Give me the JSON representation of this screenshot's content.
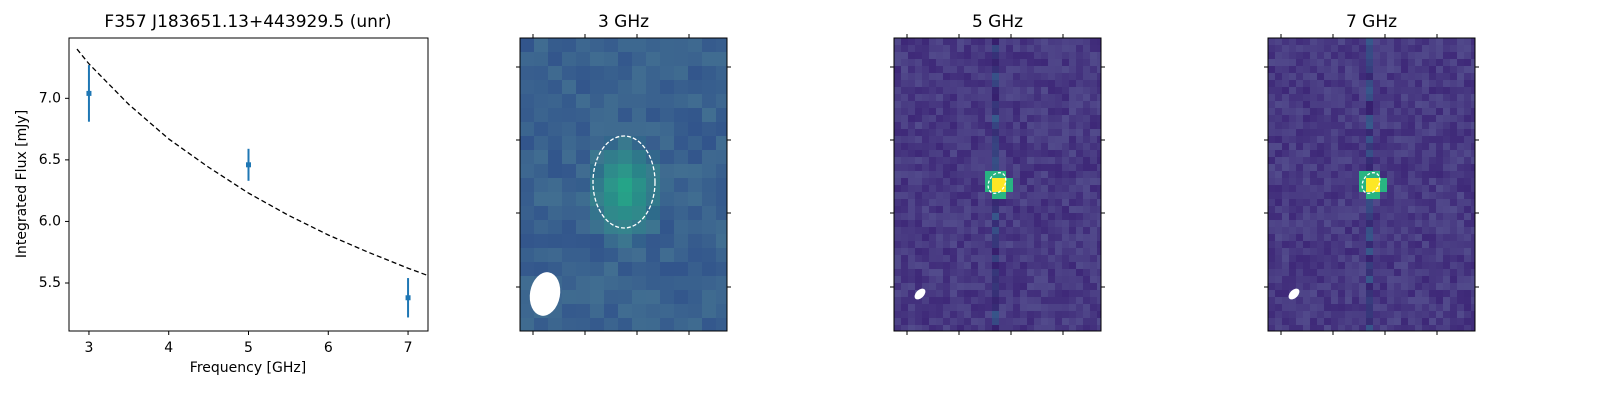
{
  "chart_data": [
    {
      "type": "scatter",
      "title": "F357 J183651.13+443929.5 (unr)",
      "xlabel": "Frequency [GHz]",
      "ylabel": "Integrated Flux [mJy]",
      "x": [
        3,
        5,
        7
      ],
      "values": [
        7.04,
        6.46,
        5.38
      ],
      "errors": [
        0.23,
        0.13,
        0.16
      ],
      "color": "#1f77b4",
      "fit": {
        "x": [
          2.85,
          3,
          3.5,
          4,
          4.5,
          5,
          5.5,
          6,
          6.5,
          7,
          7.25
        ],
        "values": [
          7.4,
          7.28,
          6.95,
          6.67,
          6.44,
          6.23,
          6.05,
          5.89,
          5.75,
          5.62,
          5.56
        ]
      },
      "xlim": [
        2.75,
        7.25
      ],
      "ylim": [
        5.11,
        7.49
      ],
      "xticks": [
        3,
        4,
        5,
        6,
        7
      ],
      "yticks": [
        {
          "value": 5.5,
          "label": "5.5"
        },
        {
          "value": 6,
          "label": "6.0"
        },
        {
          "value": 6.5,
          "label": "6.5"
        },
        {
          "value": 7,
          "label": "7.0"
        }
      ]
    },
    {
      "type": "image",
      "title": "3 GHz"
    },
    {
      "type": "image",
      "title": "5 GHz"
    },
    {
      "type": "image",
      "title": "7 GHz"
    }
  ]
}
